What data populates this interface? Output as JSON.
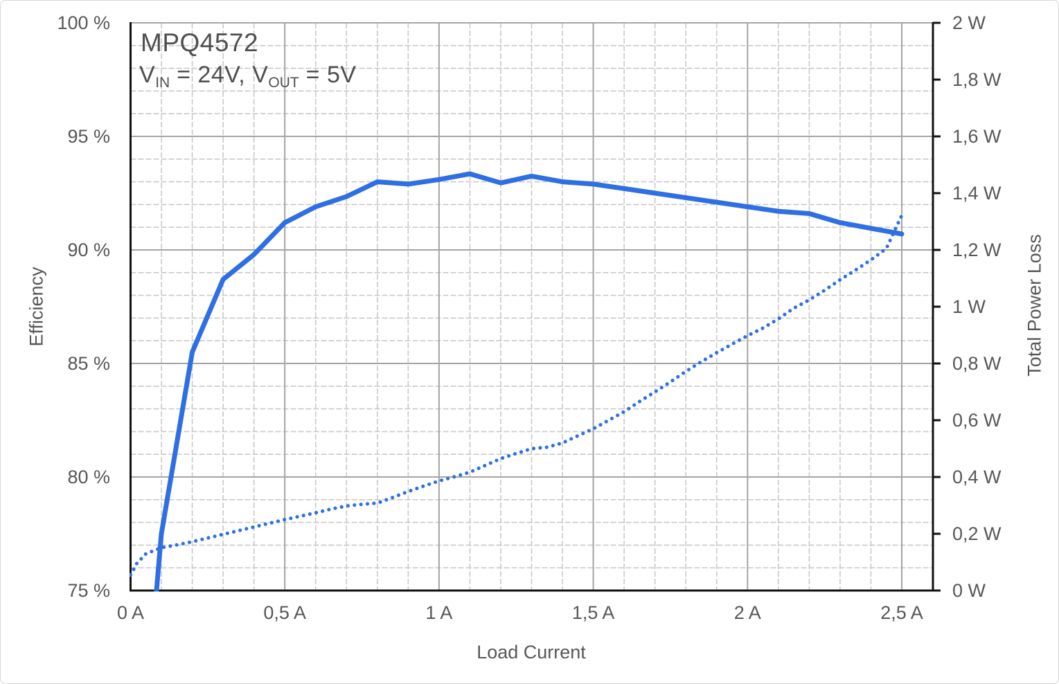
{
  "page": {
    "background": "#ffffff",
    "border_color": "#d6d6d6"
  },
  "chart_data": {
    "type": "line",
    "title": "MPQ4572",
    "subtitle": {
      "pre": "V",
      "sub1": "IN",
      "mid": " = 24V, V",
      "sub2": "OUT",
      "post": " = 5V"
    },
    "x_axis": {
      "label": "Load Current",
      "unit": "A",
      "range": [
        0,
        2.6
      ],
      "major_step": 0.5,
      "minor_step": 0.1,
      "tick_values": [
        0,
        0.5,
        1,
        1.5,
        2,
        2.5
      ],
      "tick_labels": [
        "0 A",
        "0,5 A",
        "1 A",
        "1,5 A",
        "2 A",
        "2,5 A"
      ]
    },
    "y_left": {
      "label": "Efficiency",
      "unit": "%",
      "range": [
        75,
        100
      ],
      "major_step": 5,
      "minor_step": 1,
      "tick_values": [
        100,
        95,
        90,
        85,
        80,
        75
      ],
      "tick_labels": [
        "100 %",
        "95 %",
        "90 %",
        "85 %",
        "80 %",
        "75 %"
      ]
    },
    "y_right": {
      "label": "Total Power Loss",
      "unit": "W",
      "range": [
        0,
        2
      ],
      "major_step": 0.2,
      "tick_values": [
        2,
        1.8,
        1.6,
        1.4,
        1.2,
        1,
        0.8,
        0.6,
        0.4,
        0.2,
        0
      ],
      "tick_labels": [
        "2 W",
        "1,8 W",
        "1,6 W",
        "1,4 W",
        "1,2 W",
        "1 W",
        "0,8 W",
        "0,6 W",
        "0,4 W",
        "0,2 W",
        "0 W"
      ]
    },
    "grid": {
      "minor_visible": true,
      "major_visible": true
    },
    "legend": "none",
    "series": [
      {
        "name": "Efficiency",
        "axis": "left",
        "style": "solid",
        "color": "#2e6fe4",
        "points": [
          [
            0.05,
            69.6
          ],
          [
            0.1,
            77.5
          ],
          [
            0.2,
            85.5
          ],
          [
            0.3,
            88.7
          ],
          [
            0.4,
            89.8
          ],
          [
            0.5,
            91.2
          ],
          [
            0.6,
            91.9
          ],
          [
            0.7,
            92.35
          ],
          [
            0.8,
            93.0
          ],
          [
            0.9,
            92.9
          ],
          [
            1.0,
            93.1
          ],
          [
            1.1,
            93.35
          ],
          [
            1.2,
            92.95
          ],
          [
            1.3,
            93.25
          ],
          [
            1.4,
            93.0
          ],
          [
            1.5,
            92.9
          ],
          [
            1.6,
            92.7
          ],
          [
            1.7,
            92.5
          ],
          [
            1.8,
            92.3
          ],
          [
            1.9,
            92.1
          ],
          [
            2.0,
            91.9
          ],
          [
            2.1,
            91.7
          ],
          [
            2.2,
            91.6
          ],
          [
            2.3,
            91.2
          ],
          [
            2.4,
            90.95
          ],
          [
            2.5,
            90.7
          ]
        ]
      },
      {
        "name": "Total Power Loss",
        "axis": "right",
        "style": "dotted",
        "color": "#2e6fe4",
        "points": [
          [
            0.0,
            0.055
          ],
          [
            0.02,
            0.095
          ],
          [
            0.05,
            0.13
          ],
          [
            0.1,
            0.151
          ],
          [
            0.15,
            0.161
          ],
          [
            0.2,
            0.172
          ],
          [
            0.25,
            0.185
          ],
          [
            0.3,
            0.198
          ],
          [
            0.35,
            0.211
          ],
          [
            0.4,
            0.224
          ],
          [
            0.45,
            0.237
          ],
          [
            0.5,
            0.25
          ],
          [
            0.55,
            0.262
          ],
          [
            0.6,
            0.274
          ],
          [
            0.65,
            0.287
          ],
          [
            0.7,
            0.298
          ],
          [
            0.75,
            0.304
          ],
          [
            0.8,
            0.308
          ],
          [
            0.85,
            0.328
          ],
          [
            0.9,
            0.349
          ],
          [
            0.95,
            0.368
          ],
          [
            1.0,
            0.386
          ],
          [
            1.05,
            0.401
          ],
          [
            1.1,
            0.417
          ],
          [
            1.15,
            0.441
          ],
          [
            1.2,
            0.465
          ],
          [
            1.25,
            0.483
          ],
          [
            1.3,
            0.5
          ],
          [
            1.35,
            0.505
          ],
          [
            1.4,
            0.52
          ],
          [
            1.45,
            0.545
          ],
          [
            1.5,
            0.57
          ],
          [
            1.55,
            0.6
          ],
          [
            1.6,
            0.63
          ],
          [
            1.65,
            0.666
          ],
          [
            1.7,
            0.7
          ],
          [
            1.75,
            0.735
          ],
          [
            1.8,
            0.772
          ],
          [
            1.85,
            0.806
          ],
          [
            1.9,
            0.838
          ],
          [
            1.95,
            0.868
          ],
          [
            2.0,
            0.898
          ],
          [
            2.05,
            0.925
          ],
          [
            2.1,
            0.957
          ],
          [
            2.15,
            0.995
          ],
          [
            2.2,
            1.024
          ],
          [
            2.25,
            1.058
          ],
          [
            2.3,
            1.095
          ],
          [
            2.35,
            1.129
          ],
          [
            2.4,
            1.165
          ],
          [
            2.45,
            1.205
          ],
          [
            2.5,
            1.322
          ]
        ]
      }
    ],
    "colors": {
      "line": "#2e6fe4",
      "grid_minor": "#c9c9c9",
      "grid_major": "#a4a4a4",
      "axis": "#111111",
      "text": "#575757",
      "title_text": "#4f4f4f"
    }
  }
}
